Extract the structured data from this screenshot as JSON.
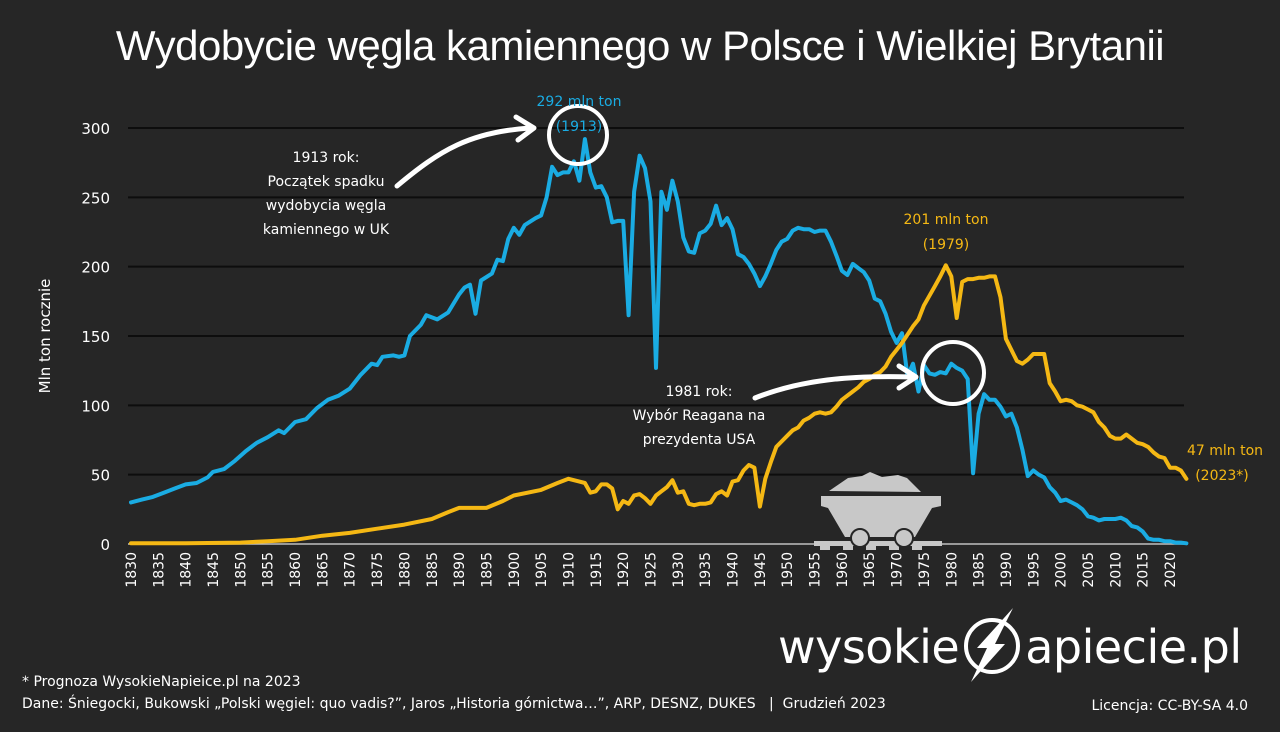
{
  "title": "Wydobycie węgla kamiennego w Polsce i Wielkiej Brytanii",
  "chart_data": {
    "type": "line",
    "title": "Wydobycie węgla kamiennego w Polsce i Wielkiej Brytanii",
    "xlabel": "",
    "ylabel": "Mln ton rocznie",
    "ylim": [
      0,
      300
    ],
    "xlim": [
      1830,
      2023
    ],
    "yticks": [
      0,
      50,
      100,
      150,
      200,
      250,
      300
    ],
    "xticks": [
      1830,
      1835,
      1840,
      1845,
      1850,
      1855,
      1860,
      1865,
      1870,
      1875,
      1880,
      1885,
      1890,
      1895,
      1900,
      1905,
      1910,
      1915,
      1920,
      1925,
      1930,
      1935,
      1940,
      1945,
      1950,
      1955,
      1960,
      1965,
      1970,
      1975,
      1980,
      1985,
      1990,
      1995,
      2000,
      2005,
      2010,
      2015,
      2020
    ],
    "grid": true,
    "legend": "none",
    "series": [
      {
        "name": "Wielka Brytania",
        "color": "#1AACE3",
        "points": [
          [
            1830,
            30
          ],
          [
            1832,
            32
          ],
          [
            1834,
            34
          ],
          [
            1836,
            37
          ],
          [
            1838,
            40
          ],
          [
            1840,
            43
          ],
          [
            1842,
            44
          ],
          [
            1844,
            48
          ],
          [
            1845,
            52
          ],
          [
            1847,
            54
          ],
          [
            1849,
            60
          ],
          [
            1851,
            67
          ],
          [
            1853,
            73
          ],
          [
            1855,
            77
          ],
          [
            1857,
            82
          ],
          [
            1858,
            80
          ],
          [
            1860,
            88
          ],
          [
            1862,
            90
          ],
          [
            1864,
            98
          ],
          [
            1866,
            104
          ],
          [
            1868,
            107
          ],
          [
            1870,
            112
          ],
          [
            1872,
            122
          ],
          [
            1874,
            130
          ],
          [
            1875,
            129
          ],
          [
            1876,
            135
          ],
          [
            1878,
            136
          ],
          [
            1879,
            135
          ],
          [
            1880,
            136
          ],
          [
            1881,
            150
          ],
          [
            1883,
            158
          ],
          [
            1884,
            165
          ],
          [
            1886,
            162
          ],
          [
            1888,
            167
          ],
          [
            1890,
            180
          ],
          [
            1891,
            185
          ],
          [
            1892,
            187
          ],
          [
            1893,
            166
          ],
          [
            1894,
            190
          ],
          [
            1896,
            195
          ],
          [
            1897,
            205
          ],
          [
            1898,
            204
          ],
          [
            1899,
            220
          ],
          [
            1900,
            228
          ],
          [
            1901,
            223
          ],
          [
            1902,
            230
          ],
          [
            1904,
            235
          ],
          [
            1905,
            237
          ],
          [
            1906,
            250
          ],
          [
            1907,
            272
          ],
          [
            1908,
            266
          ],
          [
            1909,
            268
          ],
          [
            1910,
            268
          ],
          [
            1911,
            276
          ],
          [
            1912,
            262
          ],
          [
            1913,
            292
          ],
          [
            1914,
            268
          ],
          [
            1915,
            257
          ],
          [
            1916,
            258
          ],
          [
            1917,
            250
          ],
          [
            1918,
            232
          ],
          [
            1919,
            233
          ],
          [
            1920,
            233
          ],
          [
            1921,
            165
          ],
          [
            1922,
            254
          ],
          [
            1923,
            280
          ],
          [
            1924,
            271
          ],
          [
            1925,
            247
          ],
          [
            1926,
            127
          ],
          [
            1927,
            254
          ],
          [
            1928,
            241
          ],
          [
            1929,
            262
          ],
          [
            1930,
            247
          ],
          [
            1931,
            221
          ],
          [
            1932,
            211
          ],
          [
            1933,
            210
          ],
          [
            1934,
            224
          ],
          [
            1935,
            226
          ],
          [
            1936,
            231
          ],
          [
            1937,
            244
          ],
          [
            1938,
            230
          ],
          [
            1939,
            235
          ],
          [
            1940,
            227
          ],
          [
            1941,
            209
          ],
          [
            1942,
            207
          ],
          [
            1943,
            202
          ],
          [
            1944,
            195
          ],
          [
            1945,
            186
          ],
          [
            1946,
            193
          ],
          [
            1947,
            202
          ],
          [
            1948,
            212
          ],
          [
            1949,
            218
          ],
          [
            1950,
            220
          ],
          [
            1951,
            226
          ],
          [
            1952,
            228
          ],
          [
            1953,
            227
          ],
          [
            1954,
            227
          ],
          [
            1955,
            225
          ],
          [
            1956,
            226
          ],
          [
            1957,
            226
          ],
          [
            1958,
            218
          ],
          [
            1959,
            208
          ],
          [
            1960,
            197
          ],
          [
            1961,
            194
          ],
          [
            1962,
            202
          ],
          [
            1963,
            199
          ],
          [
            1964,
            196
          ],
          [
            1965,
            190
          ],
          [
            1966,
            177
          ],
          [
            1967,
            175
          ],
          [
            1968,
            166
          ],
          [
            1969,
            153
          ],
          [
            1970,
            145
          ],
          [
            1971,
            152
          ],
          [
            1972,
            121
          ],
          [
            1973,
            130
          ],
          [
            1974,
            110
          ],
          [
            1975,
            129
          ],
          [
            1976,
            123
          ],
          [
            1977,
            122
          ],
          [
            1978,
            124
          ],
          [
            1979,
            123
          ],
          [
            1980,
            130
          ],
          [
            1981,
            127
          ],
          [
            1982,
            125
          ],
          [
            1983,
            119
          ],
          [
            1984,
            51
          ],
          [
            1985,
            94
          ],
          [
            1986,
            108
          ],
          [
            1987,
            104
          ],
          [
            1988,
            104
          ],
          [
            1989,
            99
          ],
          [
            1990,
            92
          ],
          [
            1991,
            94
          ],
          [
            1992,
            84
          ],
          [
            1993,
            68
          ],
          [
            1994,
            49
          ],
          [
            1995,
            53
          ],
          [
            1996,
            50
          ],
          [
            1997,
            48
          ],
          [
            1998,
            41
          ],
          [
            1999,
            37
          ],
          [
            2000,
            31
          ],
          [
            2001,
            32
          ],
          [
            2002,
            30
          ],
          [
            2003,
            28
          ],
          [
            2004,
            25
          ],
          [
            2005,
            20
          ],
          [
            2006,
            19
          ],
          [
            2007,
            17
          ],
          [
            2008,
            18
          ],
          [
            2009,
            18
          ],
          [
            2010,
            18
          ],
          [
            2011,
            19
          ],
          [
            2012,
            17
          ],
          [
            2013,
            13
          ],
          [
            2014,
            12
          ],
          [
            2015,
            9
          ],
          [
            2016,
            4
          ],
          [
            2017,
            3
          ],
          [
            2018,
            3
          ],
          [
            2019,
            2
          ],
          [
            2020,
            2
          ],
          [
            2021,
            1
          ],
          [
            2022,
            1
          ],
          [
            2023,
            0.5
          ]
        ]
      },
      {
        "name": "Polska",
        "color": "#F5B814",
        "points": [
          [
            1830,
            0.5
          ],
          [
            1840,
            0.6
          ],
          [
            1850,
            1
          ],
          [
            1855,
            2
          ],
          [
            1860,
            3
          ],
          [
            1865,
            6
          ],
          [
            1870,
            8
          ],
          [
            1875,
            11
          ],
          [
            1880,
            14
          ],
          [
            1885,
            18
          ],
          [
            1888,
            23
          ],
          [
            1890,
            26
          ],
          [
            1895,
            26
          ],
          [
            1898,
            31
          ],
          [
            1900,
            35
          ],
          [
            1905,
            39
          ],
          [
            1908,
            44
          ],
          [
            1910,
            47
          ],
          [
            1912,
            45
          ],
          [
            1913,
            44
          ],
          [
            1914,
            37
          ],
          [
            1915,
            38
          ],
          [
            1916,
            43
          ],
          [
            1917,
            43
          ],
          [
            1918,
            40
          ],
          [
            1919,
            25
          ],
          [
            1920,
            31
          ],
          [
            1921,
            29
          ],
          [
            1922,
            35
          ],
          [
            1923,
            36
          ],
          [
            1924,
            33
          ],
          [
            1925,
            29
          ],
          [
            1926,
            35
          ],
          [
            1927,
            38
          ],
          [
            1928,
            41
          ],
          [
            1929,
            46
          ],
          [
            1930,
            37
          ],
          [
            1931,
            38
          ],
          [
            1932,
            29
          ],
          [
            1933,
            28
          ],
          [
            1934,
            29
          ],
          [
            1935,
            29
          ],
          [
            1936,
            30
          ],
          [
            1937,
            36
          ],
          [
            1938,
            38
          ],
          [
            1939,
            35
          ],
          [
            1940,
            45
          ],
          [
            1941,
            46
          ],
          [
            1942,
            53
          ],
          [
            1943,
            57
          ],
          [
            1944,
            55
          ],
          [
            1945,
            27
          ],
          [
            1946,
            47
          ],
          [
            1947,
            59
          ],
          [
            1948,
            70
          ],
          [
            1949,
            74
          ],
          [
            1950,
            78
          ],
          [
            1951,
            82
          ],
          [
            1952,
            84
          ],
          [
            1953,
            89
          ],
          [
            1954,
            91
          ],
          [
            1955,
            94
          ],
          [
            1956,
            95
          ],
          [
            1957,
            94
          ],
          [
            1958,
            95
          ],
          [
            1959,
            99
          ],
          [
            1960,
            104
          ],
          [
            1961,
            107
          ],
          [
            1962,
            110
          ],
          [
            1963,
            113
          ],
          [
            1964,
            117
          ],
          [
            1965,
            119
          ],
          [
            1966,
            122
          ],
          [
            1967,
            124
          ],
          [
            1968,
            128
          ],
          [
            1969,
            135
          ],
          [
            1970,
            140
          ],
          [
            1971,
            145
          ],
          [
            1972,
            151
          ],
          [
            1973,
            157
          ],
          [
            1974,
            162
          ],
          [
            1975,
            172
          ],
          [
            1976,
            179
          ],
          [
            1977,
            186
          ],
          [
            1978,
            193
          ],
          [
            1979,
            201
          ],
          [
            1980,
            193
          ],
          [
            1981,
            163
          ],
          [
            1982,
            189
          ],
          [
            1983,
            191
          ],
          [
            1984,
            191
          ],
          [
            1985,
            192
          ],
          [
            1986,
            192
          ],
          [
            1987,
            193
          ],
          [
            1988,
            193
          ],
          [
            1989,
            178
          ],
          [
            1990,
            148
          ],
          [
            1991,
            140
          ],
          [
            1992,
            132
          ],
          [
            1993,
            130
          ],
          [
            1994,
            133
          ],
          [
            1995,
            137
          ],
          [
            1996,
            137
          ],
          [
            1997,
            137
          ],
          [
            1998,
            116
          ],
          [
            1999,
            110
          ],
          [
            2000,
            103
          ],
          [
            2001,
            104
          ],
          [
            2002,
            103
          ],
          [
            2003,
            100
          ],
          [
            2004,
            99
          ],
          [
            2005,
            97
          ],
          [
            2006,
            95
          ],
          [
            2007,
            88
          ],
          [
            2008,
            84
          ],
          [
            2009,
            78
          ],
          [
            2010,
            76
          ],
          [
            2011,
            76
          ],
          [
            2012,
            79
          ],
          [
            2013,
            76
          ],
          [
            2014,
            73
          ],
          [
            2015,
            72
          ],
          [
            2016,
            70
          ],
          [
            2017,
            66
          ],
          [
            2018,
            63
          ],
          [
            2019,
            62
          ],
          [
            2020,
            55
          ],
          [
            2021,
            55
          ],
          [
            2022,
            53
          ],
          [
            2023,
            47
          ]
        ]
      }
    ],
    "annotations": [
      {
        "text": "292 mln ton",
        "text2": "(1913)",
        "color": "#1AACE3"
      },
      {
        "text": "201 mln ton",
        "text2": "(1979)",
        "color": "#F5B814"
      },
      {
        "text": "47 mln ton",
        "text2": "(2023*)",
        "color": "#F5B814"
      },
      {
        "lines": [
          "1913 rok:",
          "Początek spadku",
          "wydobycia węgla",
          "kamiennego w UK"
        ],
        "color": "#FFFFFF"
      },
      {
        "lines": [
          "1981 rok:",
          "Wybór Reagana na",
          "prezydenta USA"
        ],
        "color": "#FFFFFF"
      }
    ]
  },
  "footer": {
    "note": "* Prognoza WysokieNapieice.pl na 2023",
    "sources": "Dane: Śniegocki, Bukowski „Polski węgiel: quo vadis?”, Jaros „Historia górnictwa…”, ARP, DESNZ, DUKES   |  Grudzień 2023",
    "license": "Licencja: CC-BY-SA 4.0"
  },
  "logo": {
    "left": "wysokie",
    "right": "apiecie.pl"
  }
}
